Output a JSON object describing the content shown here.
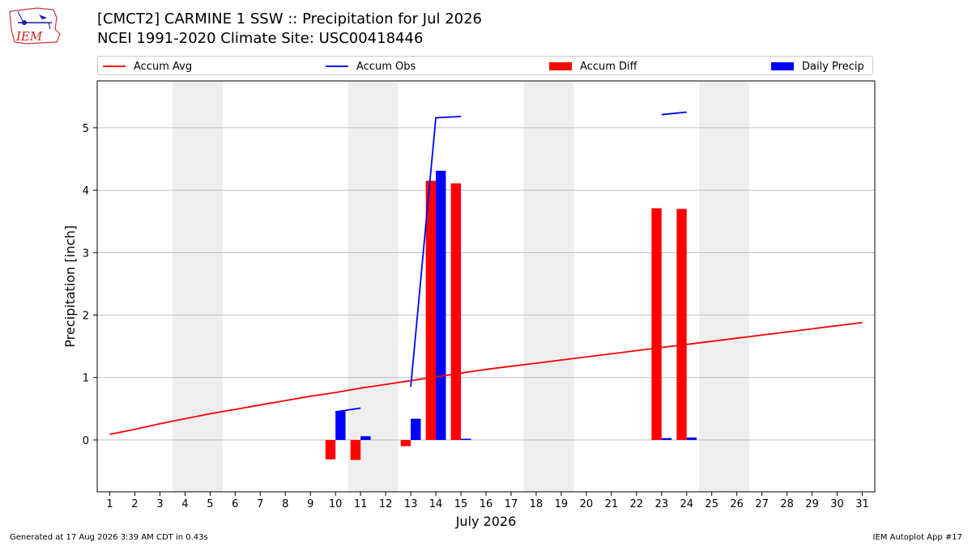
{
  "header": {
    "logo_text": "IEM",
    "title_line1": "[CMCT2] CARMINE 1 SSW :: Precipitation for Jul 2026",
    "title_line2": "NCEI 1991-2020 Climate Site: USC00418446"
  },
  "legend": {
    "items": [
      {
        "label": "Accum Avg",
        "kind": "line",
        "color": "#ff0000"
      },
      {
        "label": "Accum Obs",
        "kind": "line",
        "color": "#0000ff"
      },
      {
        "label": "Accum Diff",
        "kind": "box",
        "color": "#ff0000"
      },
      {
        "label": "Daily Precip",
        "kind": "box",
        "color": "#0000ff"
      }
    ]
  },
  "footer": {
    "generated": "Generated at 17 Aug 2026 3:39 AM CDT in 0.43s",
    "app": "IEM Autoplot App #17"
  },
  "chart_data": {
    "type": "bar",
    "xlabel": "July 2026",
    "ylabel": "Precipitation [inch]",
    "xlim": [
      0.5,
      31.5
    ],
    "ylim": [
      -0.83,
      5.75
    ],
    "x_ticks": [
      1,
      2,
      3,
      4,
      5,
      6,
      7,
      8,
      9,
      10,
      11,
      12,
      13,
      14,
      15,
      16,
      17,
      18,
      19,
      20,
      21,
      22,
      23,
      24,
      25,
      26,
      27,
      28,
      29,
      30,
      31
    ],
    "y_ticks": [
      0,
      1,
      2,
      3,
      4,
      5
    ],
    "grid": "horizontal",
    "weekend_shading_days": [
      4,
      5,
      11,
      12,
      18,
      19,
      25,
      26
    ],
    "colors": {
      "avg": "#ff0000",
      "obs": "#0000ff",
      "diff": "#ff0000",
      "daily": "#0000ff",
      "weekend": "#eeeeee",
      "grid": "#b0b0b0"
    },
    "series": [
      {
        "name": "Accum Avg",
        "kind": "line",
        "x": [
          1,
          2,
          3,
          4,
          5,
          6,
          7,
          8,
          9,
          10,
          11,
          12,
          13,
          14,
          15,
          16,
          17,
          18,
          19,
          20,
          21,
          22,
          23,
          24,
          25,
          26,
          27,
          28,
          29,
          30,
          31
        ],
        "values": [
          0.09,
          0.17,
          0.26,
          0.34,
          0.42,
          0.49,
          0.56,
          0.63,
          0.7,
          0.76,
          0.83,
          0.89,
          0.95,
          1.01,
          1.07,
          1.13,
          1.18,
          1.23,
          1.28,
          1.33,
          1.38,
          1.43,
          1.48,
          1.53,
          1.58,
          1.63,
          1.68,
          1.73,
          1.78,
          1.83,
          1.88
        ]
      },
      {
        "name": "Accum Obs",
        "kind": "line",
        "x": [
          10,
          11,
          12,
          13,
          14,
          15,
          16,
          17,
          18,
          19,
          20,
          21,
          22,
          23,
          24
        ],
        "values": [
          0.45,
          0.51,
          null,
          0.85,
          5.16,
          5.18,
          null,
          null,
          null,
          null,
          null,
          null,
          null,
          5.21,
          5.25
        ]
      },
      {
        "name": "Accum Diff",
        "kind": "bar",
        "x": [
          10,
          11,
          13,
          14,
          15,
          23,
          24
        ],
        "values": [
          -0.31,
          -0.32,
          -0.1,
          4.15,
          4.11,
          3.71,
          3.7
        ]
      },
      {
        "name": "Daily Precip",
        "kind": "bar",
        "x": [
          10,
          11,
          13,
          14,
          15,
          23,
          24
        ],
        "values": [
          0.46,
          0.06,
          0.34,
          4.31,
          0.02,
          0.03,
          0.04
        ]
      }
    ]
  }
}
